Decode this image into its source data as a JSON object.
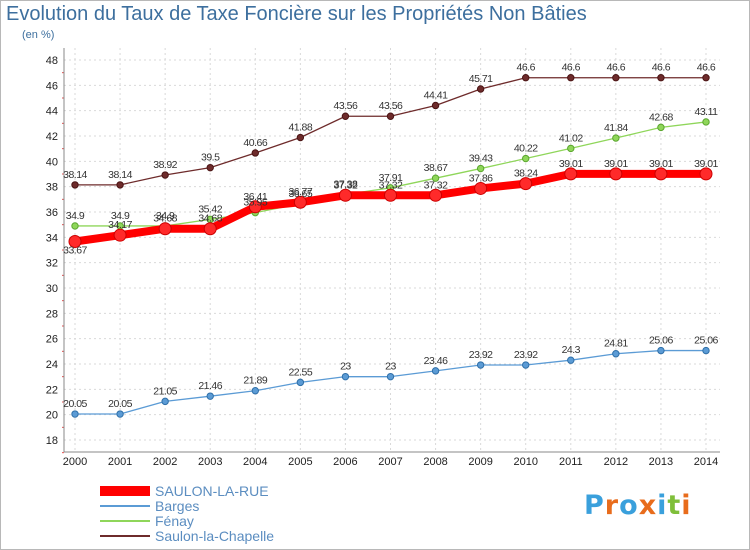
{
  "chart_data": {
    "type": "line",
    "title": "Evolution du Taux de Taxe Foncière sur les Propriétés Non Bâties",
    "subtitle": "(en %)",
    "xlabel": "",
    "ylabel": "",
    "ylim": [
      18,
      48
    ],
    "yticks": [
      "18",
      "20",
      "22",
      "24",
      "26",
      "28",
      "30",
      "32",
      "34",
      "36",
      "38",
      "40",
      "42",
      "44",
      "46",
      "48"
    ],
    "categories": [
      "2000",
      "2001",
      "2002",
      "2003",
      "2004",
      "2005",
      "2006",
      "2007",
      "2008",
      "2009",
      "2010",
      "2011",
      "2012",
      "2013",
      "2014"
    ],
    "grid": true,
    "legend_position": "bottom-left",
    "series": [
      {
        "name": "SAULON-LA-RUE",
        "color": "#ff0000",
        "values": [
          33.67,
          34.17,
          34.68,
          34.68,
          36.41,
          36.77,
          37.32,
          37.32,
          37.32,
          37.86,
          38.24,
          39.01,
          39.01,
          39.01,
          39.01
        ],
        "labels": [
          "33.67",
          "34.17",
          "34.68",
          "34.68",
          "36.41",
          "36.77",
          "37.32",
          "37.32",
          "37.32",
          "37.86",
          "38.24",
          "39.01",
          "39.01",
          "39.01",
          "39.01"
        ]
      },
      {
        "name": "Barges",
        "color": "#5b9bd5",
        "values": [
          20.05,
          20.05,
          21.05,
          21.46,
          21.89,
          22.55,
          23,
          23,
          23.46,
          23.92,
          23.92,
          24.3,
          24.81,
          25.06,
          25.06
        ],
        "labels": [
          "20.05",
          "20.05",
          "21.05",
          "21.46",
          "21.89",
          "22.55",
          "23",
          "23",
          "23.46",
          "23.92",
          "23.92",
          "24.3",
          "24.81",
          "25.06",
          "25.06"
        ]
      },
      {
        "name": "Fénay",
        "color": "#8fd65a",
        "values": [
          34.9,
          34.9,
          34.9,
          35.42,
          35.95,
          36.65,
          37.38,
          37.91,
          38.67,
          39.43,
          40.22,
          41.02,
          41.84,
          42.68,
          43.11
        ],
        "labels": [
          "34.9",
          "34.9",
          "34.9",
          "35.42",
          "35.95",
          "36.65",
          "37.38",
          "37.91",
          "38.67",
          "39.43",
          "40.22",
          "41.02",
          "41.84",
          "42.68",
          "43.11"
        ]
      },
      {
        "name": "Saulon-la-Chapelle",
        "color": "#6e2b2b",
        "values": [
          38.14,
          38.14,
          38.92,
          39.5,
          40.66,
          41.88,
          43.56,
          43.56,
          44.41,
          45.71,
          46.6,
          46.6,
          46.6,
          46.6,
          46.6
        ],
        "labels": [
          "38.14",
          "38.14",
          "38.92",
          "39.5",
          "40.66",
          "41.88",
          "43.56",
          "43.56",
          "44.41",
          "45.71",
          "46.6",
          "46.6",
          "46.6",
          "46.6",
          "46.6"
        ]
      }
    ]
  },
  "brand": {
    "logo_text": "Proxiti",
    "colors": [
      "#3aa0dc",
      "#e86c1c",
      "#3aa0dc",
      "#e86c1c",
      "#3aa0dc",
      "#7fbf3a",
      "#e86c1c"
    ]
  }
}
